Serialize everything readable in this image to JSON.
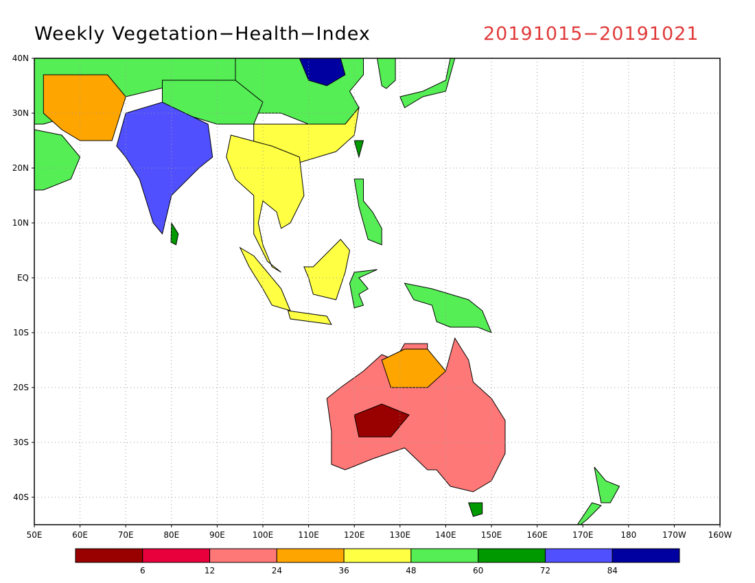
{
  "title": "Weekly Vegetation−Health−Index",
  "date_range": "20191015−20191021",
  "colors": {
    "title": "#000000",
    "date": "#e03a3a",
    "land_default": "#ffffff"
  },
  "map": {
    "lon_range": [
      50,
      200
    ],
    "lat_range": [
      -45,
      40
    ],
    "grid": "dotted",
    "lat_ticks": [
      {
        "value": 40,
        "label": "40N"
      },
      {
        "value": 30,
        "label": "30N"
      },
      {
        "value": 20,
        "label": "20N"
      },
      {
        "value": 10,
        "label": "10N"
      },
      {
        "value": 0,
        "label": "EQ"
      },
      {
        "value": -10,
        "label": "10S"
      },
      {
        "value": -20,
        "label": "20S"
      },
      {
        "value": -30,
        "label": "30S"
      },
      {
        "value": -40,
        "label": "40S"
      }
    ],
    "lon_ticks": [
      {
        "value": 50,
        "label": "50E"
      },
      {
        "value": 60,
        "label": "60E"
      },
      {
        "value": 70,
        "label": "70E"
      },
      {
        "value": 80,
        "label": "80E"
      },
      {
        "value": 90,
        "label": "90E"
      },
      {
        "value": 100,
        "label": "100E"
      },
      {
        "value": 110,
        "label": "110E"
      },
      {
        "value": 120,
        "label": "120E"
      },
      {
        "value": 130,
        "label": "130E"
      },
      {
        "value": 140,
        "label": "140E"
      },
      {
        "value": 150,
        "label": "150E"
      },
      {
        "value": 160,
        "label": "160E"
      },
      {
        "value": 170,
        "label": "170E"
      },
      {
        "value": 180,
        "label": "180"
      },
      {
        "value": 190,
        "label": "170W"
      },
      {
        "value": 200,
        "label": "160W"
      }
    ]
  },
  "legend": {
    "colors": [
      "#990000",
      "#e8003c",
      "#ff7878",
      "#ffa500",
      "#ffff44",
      "#55ee55",
      "#009900",
      "#5050ff",
      "#0000a0"
    ],
    "labels": [
      "6",
      "12",
      "24",
      "36",
      "48",
      "60",
      "72",
      "84"
    ]
  },
  "regions": [
    {
      "name": "china-north",
      "color": "#55ee55",
      "points": [
        [
          94,
          40
        ],
        [
          122,
          40
        ],
        [
          122,
          37
        ],
        [
          119,
          34
        ],
        [
          121,
          31
        ],
        [
          118,
          28
        ],
        [
          110,
          28
        ],
        [
          104,
          30
        ],
        [
          98,
          30
        ],
        [
          94,
          33
        ]
      ]
    },
    {
      "name": "north-china-plain",
      "color": "#0000a0",
      "points": [
        [
          108,
          40
        ],
        [
          117,
          40
        ],
        [
          118,
          37
        ],
        [
          114,
          35
        ],
        [
          110,
          36
        ]
      ]
    },
    {
      "name": "central-asia",
      "color": "#55ee55",
      "points": [
        [
          50,
          40
        ],
        [
          94,
          40
        ],
        [
          94,
          35
        ],
        [
          80,
          35
        ],
        [
          70,
          33
        ],
        [
          60,
          30
        ],
        [
          52,
          28
        ],
        [
          50,
          28
        ]
      ]
    },
    {
      "name": "iran-pakistan",
      "color": "#ffa500",
      "points": [
        [
          52,
          37
        ],
        [
          66,
          37
        ],
        [
          70,
          33
        ],
        [
          67,
          25
        ],
        [
          60,
          25
        ],
        [
          56,
          27
        ],
        [
          52,
          30
        ]
      ]
    },
    {
      "name": "tibet",
      "color": "#55ee55",
      "points": [
        [
          78,
          36
        ],
        [
          94,
          36
        ],
        [
          100,
          32
        ],
        [
          98,
          28
        ],
        [
          90,
          28
        ],
        [
          82,
          30
        ],
        [
          78,
          32
        ]
      ]
    },
    {
      "name": "arabia",
      "color": "#55ee55",
      "points": [
        [
          50,
          27
        ],
        [
          56,
          26
        ],
        [
          60,
          22
        ],
        [
          58,
          18
        ],
        [
          52,
          16
        ],
        [
          50,
          16
        ]
      ]
    },
    {
      "name": "india",
      "color": "#5050ff",
      "points": [
        [
          70,
          30
        ],
        [
          78,
          32
        ],
        [
          88,
          28
        ],
        [
          89,
          22
        ],
        [
          86,
          20
        ],
        [
          80,
          15
        ],
        [
          78,
          8
        ],
        [
          76,
          10
        ],
        [
          73,
          18
        ],
        [
          70,
          22
        ],
        [
          68,
          24
        ]
      ]
    },
    {
      "name": "south-china",
      "color": "#ffff44",
      "points": [
        [
          98,
          28
        ],
        [
          110,
          28
        ],
        [
          118,
          28
        ],
        [
          121,
          31
        ],
        [
          120,
          26
        ],
        [
          116,
          23
        ],
        [
          108,
          21
        ],
        [
          106,
          22
        ],
        [
          102,
          21
        ],
        [
          98,
          24
        ]
      ]
    },
    {
      "name": "indochina",
      "color": "#ffff44",
      "points": [
        [
          93,
          26
        ],
        [
          102,
          24
        ],
        [
          108,
          22
        ],
        [
          109,
          15
        ],
        [
          106,
          10
        ],
        [
          104,
          9
        ],
        [
          103,
          12
        ],
        [
          100,
          14
        ],
        [
          99,
          10
        ],
        [
          100,
          6
        ],
        [
          102,
          2
        ],
        [
          104,
          1
        ],
        [
          101,
          3
        ],
        [
          98,
          8
        ],
        [
          98,
          15
        ],
        [
          94,
          18
        ],
        [
          92,
          22
        ]
      ]
    },
    {
      "name": "sri-lanka",
      "color": "#009900",
      "points": [
        [
          80,
          10
        ],
        [
          81.5,
          8
        ],
        [
          81,
          6
        ],
        [
          79.9,
          6.5
        ]
      ]
    },
    {
      "name": "sumatra",
      "color": "#ffff44",
      "points": [
        [
          95,
          5.5
        ],
        [
          98,
          4
        ],
        [
          104,
          -2
        ],
        [
          106,
          -6
        ],
        [
          102,
          -5
        ],
        [
          100,
          -2
        ],
        [
          97,
          2
        ]
      ]
    },
    {
      "name": "borneo",
      "color": "#ffff44",
      "points": [
        [
          109,
          2
        ],
        [
          111,
          2
        ],
        [
          117,
          7
        ],
        [
          119,
          5
        ],
        [
          118,
          1
        ],
        [
          116,
          -4
        ],
        [
          111,
          -3
        ],
        [
          110,
          0
        ]
      ]
    },
    {
      "name": "java",
      "color": "#ffff44",
      "points": [
        [
          105.5,
          -6
        ],
        [
          114,
          -7
        ],
        [
          115,
          -8.5
        ],
        [
          106,
          -7.5
        ]
      ]
    },
    {
      "name": "sulawesi",
      "color": "#55ee55",
      "points": [
        [
          119,
          -1
        ],
        [
          120,
          1
        ],
        [
          125,
          1.5
        ],
        [
          121,
          0
        ],
        [
          123,
          -2
        ],
        [
          121,
          -3
        ],
        [
          122,
          -5
        ],
        [
          120,
          -5.5
        ]
      ]
    },
    {
      "name": "philippines",
      "color": "#55ee55",
      "points": [
        [
          120,
          18
        ],
        [
          122,
          18
        ],
        [
          122,
          14
        ],
        [
          124,
          12
        ],
        [
          126,
          9
        ],
        [
          126,
          6
        ],
        [
          123,
          7
        ],
        [
          122,
          10
        ],
        [
          121,
          13
        ]
      ]
    },
    {
      "name": "japan",
      "color": "#55ee55",
      "points": [
        [
          130,
          33
        ],
        [
          135,
          34
        ],
        [
          140,
          36
        ],
        [
          141,
          40
        ],
        [
          142,
          40
        ],
        [
          140,
          34
        ],
        [
          135,
          33
        ],
        [
          131,
          31
        ]
      ]
    },
    {
      "name": "korea",
      "color": "#55ee55",
      "points": [
        [
          125,
          40
        ],
        [
          129,
          40
        ],
        [
          129,
          36
        ],
        [
          127,
          34.5
        ],
        [
          126,
          35
        ]
      ]
    },
    {
      "name": "taiwan",
      "color": "#009900",
      "points": [
        [
          120,
          25
        ],
        [
          122,
          25
        ],
        [
          121,
          22
        ]
      ]
    },
    {
      "name": "new-guinea",
      "color": "#55ee55",
      "points": [
        [
          131,
          -1
        ],
        [
          137,
          -2
        ],
        [
          141,
          -3
        ],
        [
          145,
          -4
        ],
        [
          148,
          -6
        ],
        [
          150,
          -10
        ],
        [
          147,
          -9
        ],
        [
          143,
          -9
        ],
        [
          141,
          -9
        ],
        [
          138,
          -8
        ],
        [
          137,
          -5
        ],
        [
          133,
          -4
        ]
      ]
    },
    {
      "name": "australia",
      "color": "#ff7878",
      "points": [
        [
          114,
          -22
        ],
        [
          117,
          -20
        ],
        [
          122,
          -17
        ],
        [
          126,
          -14
        ],
        [
          129,
          -15
        ],
        [
          131,
          -12
        ],
        [
          136,
          -12
        ],
        [
          136,
          -15
        ],
        [
          140,
          -17
        ],
        [
          142,
          -11
        ],
        [
          145,
          -15
        ],
        [
          146,
          -19
        ],
        [
          150,
          -22
        ],
        [
          153,
          -26
        ],
        [
          153,
          -32
        ],
        [
          150,
          -37
        ],
        [
          146,
          -39
        ],
        [
          141,
          -38
        ],
        [
          138,
          -35
        ],
        [
          136,
          -35
        ],
        [
          131,
          -31
        ],
        [
          124,
          -33
        ],
        [
          118,
          -35
        ],
        [
          115,
          -34
        ],
        [
          115,
          -28
        ]
      ]
    },
    {
      "name": "australia-central-dark",
      "color": "#990000",
      "points": [
        [
          120,
          -25
        ],
        [
          126,
          -23
        ],
        [
          132,
          -25
        ],
        [
          128,
          -29
        ],
        [
          121,
          -29
        ]
      ]
    },
    {
      "name": "australia-north-orange",
      "color": "#ffa500",
      "points": [
        [
          126,
          -15
        ],
        [
          131,
          -13
        ],
        [
          136,
          -13
        ],
        [
          140,
          -17
        ],
        [
          136,
          -20
        ],
        [
          128,
          -20
        ]
      ]
    },
    {
      "name": "tasmania",
      "color": "#009900",
      "points": [
        [
          145,
          -41
        ],
        [
          148,
          -41
        ],
        [
          148,
          -43
        ],
        [
          146,
          -43.5
        ]
      ]
    },
    {
      "name": "new-zealand-north",
      "color": "#55ee55",
      "points": [
        [
          172.5,
          -34.5
        ],
        [
          175,
          -37
        ],
        [
          178,
          -38
        ],
        [
          176,
          -41
        ],
        [
          174,
          -41
        ]
      ]
    },
    {
      "name": "new-zealand-south",
      "color": "#55ee55",
      "points": [
        [
          172,
          -41
        ],
        [
          174,
          -41.5
        ],
        [
          171,
          -44
        ],
        [
          168,
          -46
        ]
      ]
    }
  ]
}
